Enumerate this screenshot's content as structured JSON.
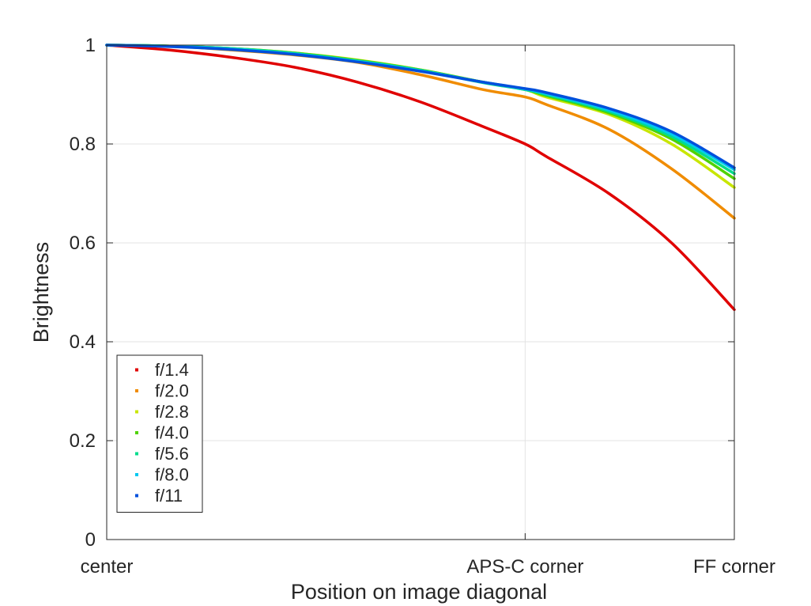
{
  "chart_data": {
    "type": "line",
    "xlabel": "Position on image diagonal",
    "ylabel": "Brightness",
    "xlim": [
      0,
      1
    ],
    "ylim": [
      0,
      1
    ],
    "x_ticks": [
      {
        "value": 0,
        "label": "center"
      },
      {
        "value": 0.6667,
        "label": "APS-C corner"
      },
      {
        "value": 1,
        "label": "FF corner"
      }
    ],
    "y_ticks": [
      {
        "value": 0,
        "label": "0"
      },
      {
        "value": 0.2,
        "label": "0.2"
      },
      {
        "value": 0.4,
        "label": "0.4"
      },
      {
        "value": 0.6,
        "label": "0.6"
      },
      {
        "value": 0.8,
        "label": "0.8"
      },
      {
        "value": 1,
        "label": "1"
      }
    ],
    "grid": true,
    "legend_position": "bottom-left",
    "x": [
      0,
      0.1,
      0.2,
      0.3,
      0.4,
      0.5,
      0.6,
      0.6667,
      0.7,
      0.8,
      0.9,
      1.0
    ],
    "series": [
      {
        "name": "f/1.4",
        "color": "#e00000",
        "values": [
          1.0,
          0.99,
          0.975,
          0.955,
          0.925,
          0.885,
          0.835,
          0.8,
          0.775,
          0.7,
          0.6,
          0.465
        ]
      },
      {
        "name": "f/2.0",
        "color": "#f08c00",
        "values": [
          1.0,
          0.998,
          0.99,
          0.98,
          0.965,
          0.94,
          0.91,
          0.895,
          0.88,
          0.83,
          0.75,
          0.65
        ]
      },
      {
        "name": "f/2.8",
        "color": "#c8e600",
        "values": [
          1.0,
          0.998,
          0.993,
          0.984,
          0.97,
          0.95,
          0.925,
          0.91,
          0.895,
          0.86,
          0.8,
          0.712
        ]
      },
      {
        "name": "f/4.0",
        "color": "#50d200",
        "values": [
          1.0,
          0.998,
          0.993,
          0.984,
          0.969,
          0.95,
          0.925,
          0.91,
          0.898,
          0.863,
          0.81,
          0.73
        ]
      },
      {
        "name": "f/5.6",
        "color": "#00dc8c",
        "values": [
          1.0,
          0.998,
          0.993,
          0.983,
          0.968,
          0.949,
          0.924,
          0.91,
          0.9,
          0.866,
          0.815,
          0.74
        ]
      },
      {
        "name": "f/8.0",
        "color": "#00c8f0",
        "values": [
          1.0,
          0.998,
          0.992,
          0.982,
          0.967,
          0.948,
          0.925,
          0.911,
          0.902,
          0.869,
          0.82,
          0.748
        ]
      },
      {
        "name": "f/11",
        "color": "#0050dc",
        "values": [
          1.0,
          0.997,
          0.991,
          0.981,
          0.966,
          0.947,
          0.925,
          0.912,
          0.904,
          0.872,
          0.825,
          0.752
        ]
      }
    ]
  }
}
